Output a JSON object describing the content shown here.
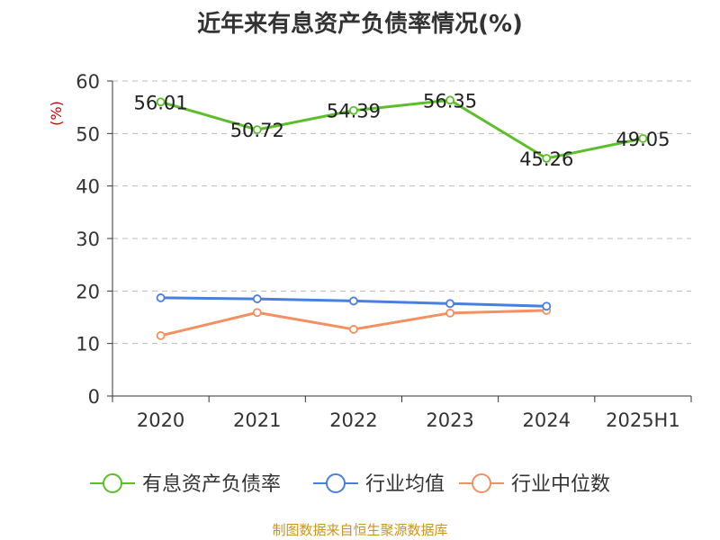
{
  "chart_data": {
    "type": "line",
    "title": "近年来有息资产负债率情况(%)",
    "ylabel": "(%)",
    "xlabel": "",
    "categories": [
      "2020",
      "2021",
      "2022",
      "2023",
      "2024",
      "2025H1"
    ],
    "ylim": [
      0,
      60
    ],
    "yticks": [
      0,
      10,
      20,
      30,
      40,
      50,
      60
    ],
    "grid": true,
    "legend_position": "bottom",
    "series": [
      {
        "name": "有息资产负债率",
        "color": "#5cbf2a",
        "values": [
          56.01,
          50.72,
          54.39,
          56.35,
          45.26,
          49.05
        ],
        "show_labels": true
      },
      {
        "name": "行业均值",
        "color": "#4a7fe0",
        "values": [
          18.7,
          18.5,
          18.1,
          17.6,
          17.1,
          null
        ],
        "show_labels": false
      },
      {
        "name": "行业中位数",
        "color": "#f39060",
        "values": [
          11.5,
          15.9,
          12.7,
          15.8,
          16.3,
          null
        ],
        "show_labels": false
      }
    ],
    "data_labels": [
      "56.01",
      "50.72",
      "54.39",
      "56.35",
      "45.26",
      "49.05"
    ]
  },
  "footer": {
    "source": "制图数据来自恒生聚源数据库"
  }
}
